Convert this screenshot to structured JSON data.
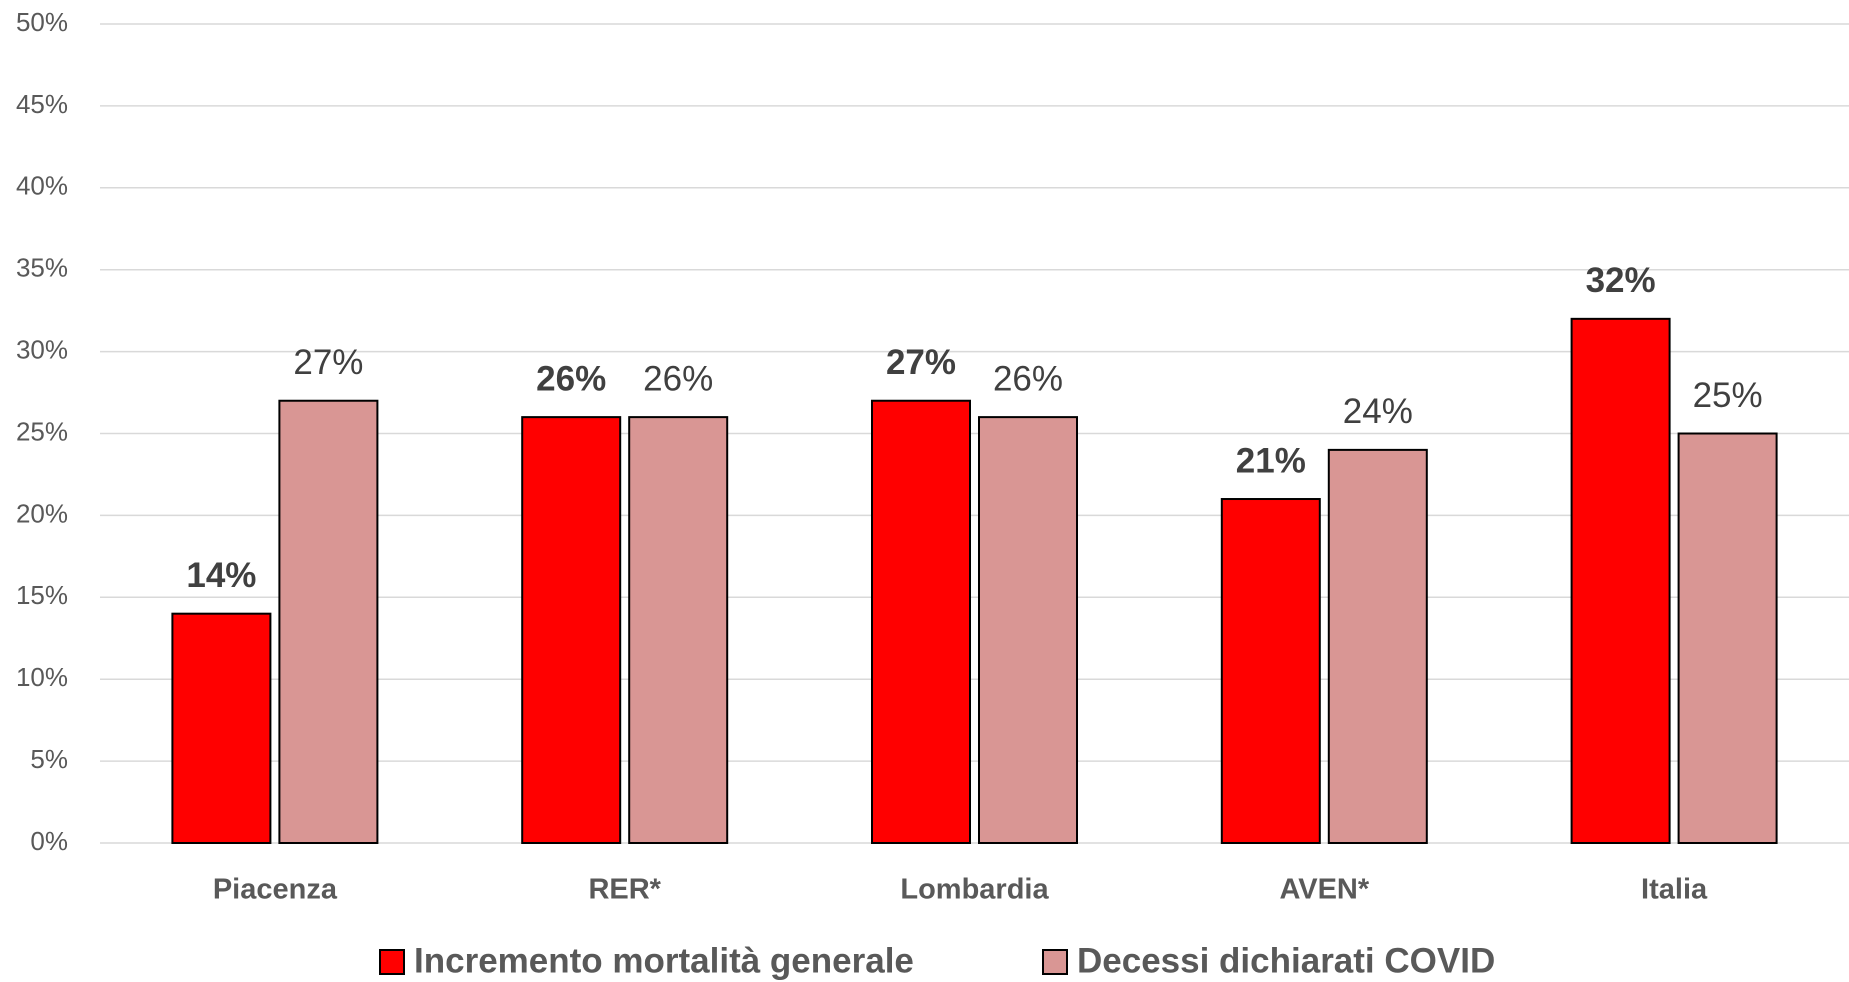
{
  "chart_data": {
    "type": "bar",
    "categories": [
      "Piacenza",
      "RER*",
      "Lombardia",
      "AVEN*",
      "Italia"
    ],
    "series": [
      {
        "name": "Incremento mortalità generale",
        "color": "#ff0000",
        "values": [
          14,
          26,
          27,
          21,
          32
        ],
        "value_labels": [
          "14%",
          "26%",
          "27%",
          "21%",
          "32%"
        ]
      },
      {
        "name": "Decessi dichiarati COVID",
        "color": "#d99694",
        "values": [
          27,
          26,
          26,
          24,
          25
        ],
        "value_labels": [
          "27%",
          "26%",
          "26%",
          "24%",
          "25%"
        ]
      }
    ],
    "ylim": [
      0,
      50
    ],
    "yticks": [
      {
        "value": 0,
        "label": "0%"
      },
      {
        "value": 5,
        "label": "5%"
      },
      {
        "value": 10,
        "label": "10%"
      },
      {
        "value": 15,
        "label": "15%"
      },
      {
        "value": 20,
        "label": "20%"
      },
      {
        "value": 25,
        "label": "25%"
      },
      {
        "value": 30,
        "label": "30%"
      },
      {
        "value": 35,
        "label": "35%"
      },
      {
        "value": 40,
        "label": "40%"
      },
      {
        "value": 45,
        "label": "45%"
      },
      {
        "value": 50,
        "label": "50%"
      }
    ],
    "grid": true,
    "legend": "bottom"
  }
}
